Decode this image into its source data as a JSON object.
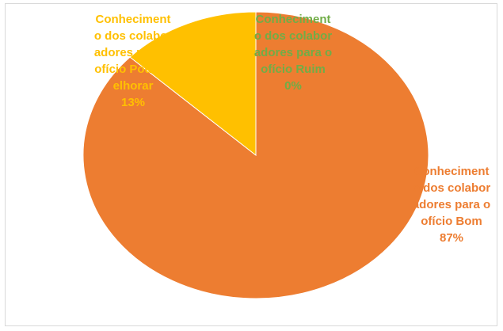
{
  "chart_data": {
    "type": "pie",
    "categories": [
      "Conhecimento dos colaboradores para o ofício Ruim",
      "Conhecimento dos colaboradores para o ofício Bom",
      "Conhecimento dos colaboradores para o ofício Pode Melhorar"
    ],
    "values": [
      0,
      87,
      13
    ],
    "value_labels": [
      "0%",
      "87%",
      "13%"
    ],
    "colors": [
      "#70AD47",
      "#ED7D31",
      "#FFC000"
    ]
  }
}
